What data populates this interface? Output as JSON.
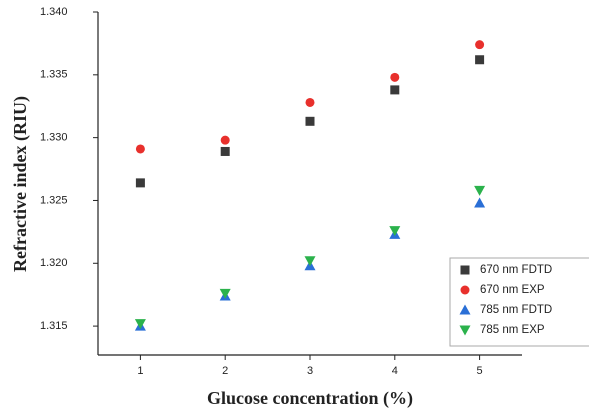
{
  "chart_data": {
    "type": "scatter",
    "x_label": "Glucose concentration (%)",
    "y_label": "Refractive index (RIU)",
    "x": [
      1,
      2,
      3,
      4,
      5
    ],
    "xlim": [
      0.5,
      5.5
    ],
    "xticks": [
      1,
      2,
      3,
      4,
      5
    ],
    "ylim": [
      1.3127,
      1.34
    ],
    "yticks": [
      {
        "value": 1.315,
        "label": "1.315"
      },
      {
        "value": 1.32,
        "label": "1.320"
      },
      {
        "value": 1.325,
        "label": "1.325"
      },
      {
        "value": 1.33,
        "label": "1.330"
      },
      {
        "value": 1.335,
        "label": "1.335"
      },
      {
        "value": 1.34,
        "label": "1.340"
      }
    ],
    "legend": "lower right",
    "series": [
      {
        "name": "670 nm FDTD",
        "color": "#3a3a3a",
        "marker": "square",
        "values": [
          1.3264,
          1.3289,
          1.3313,
          1.3338,
          1.3362
        ]
      },
      {
        "name": "670 nm EXP",
        "color": "#e8302c",
        "marker": "circle",
        "values": [
          1.3291,
          1.3298,
          1.3328,
          1.3348,
          1.3374
        ]
      },
      {
        "name": "785 nm FDTD",
        "color": "#2a6fd6",
        "marker": "triangle-up",
        "values": [
          1.315,
          1.3174,
          1.3198,
          1.3223,
          1.3248
        ]
      },
      {
        "name": "785 nm EXP",
        "color": "#2bb24c",
        "marker": "triangle-down",
        "values": [
          1.3152,
          1.3176,
          1.3202,
          1.3226,
          1.3258
        ]
      }
    ]
  }
}
